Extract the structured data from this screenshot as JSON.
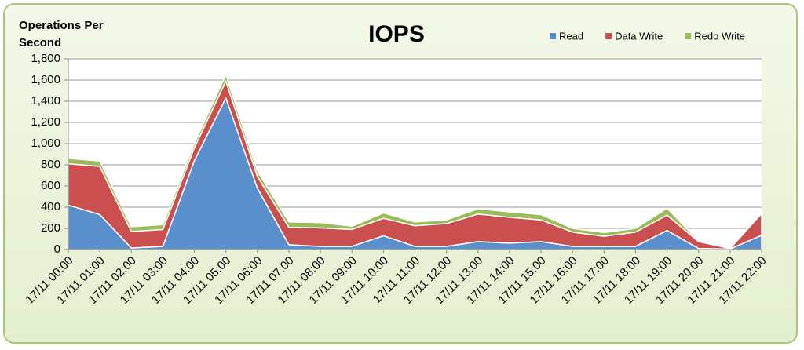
{
  "chart_data": {
    "type": "stacked_area",
    "title": "IOPS",
    "ylabel": "Operations Per Second",
    "categories": [
      "17/11 00:00",
      "17/11 01:00",
      "17/11 02:00",
      "17/11 03:00",
      "17/11 04:00",
      "17/11 05:00",
      "17/11 06:00",
      "17/11 07:00",
      "17/11 08:00",
      "17/11 09:00",
      "17/11 10:00",
      "17/11 11:00",
      "17/11 12:00",
      "17/11 13:00",
      "17/11 14:00",
      "17/11 15:00",
      "17/11 16:00",
      "17/11 17:00",
      "17/11 18:00",
      "17/11 19:00",
      "17/11 20:00",
      "17/11 21:00",
      "17/11 22:00"
    ],
    "series": [
      {
        "name": "Read",
        "color": "#5b8fcb",
        "values": [
          420,
          330,
          15,
          30,
          840,
          1430,
          580,
          45,
          30,
          30,
          130,
          30,
          30,
          75,
          60,
          75,
          30,
          30,
          30,
          180,
          10,
          5,
          135
        ]
      },
      {
        "name": "Data Write",
        "color": "#c9504f",
        "values": [
          390,
          455,
          155,
          160,
          120,
          160,
          110,
          165,
          175,
          160,
          165,
          195,
          215,
          260,
          245,
          205,
          135,
          95,
          135,
          145,
          65,
          5,
          205
        ]
      },
      {
        "name": "Redo Write",
        "color": "#9bbb59",
        "values": [
          50,
          50,
          45,
          45,
          40,
          60,
          50,
          50,
          50,
          30,
          50,
          35,
          35,
          50,
          50,
          50,
          35,
          35,
          35,
          65,
          5,
          0,
          15
        ]
      }
    ],
    "ylim": [
      0,
      1800
    ],
    "yticks": [
      0,
      200,
      400,
      600,
      800,
      {
        "value": 1000,
        "label": "1,000"
      },
      {
        "value": 1200,
        "label": "1,200"
      },
      {
        "value": 1400,
        "label": "1,400"
      },
      {
        "value": 1600,
        "label": "1,600"
      },
      {
        "value": 1800,
        "label": "1,800"
      }
    ],
    "grid": true,
    "legend": "top-right"
  }
}
